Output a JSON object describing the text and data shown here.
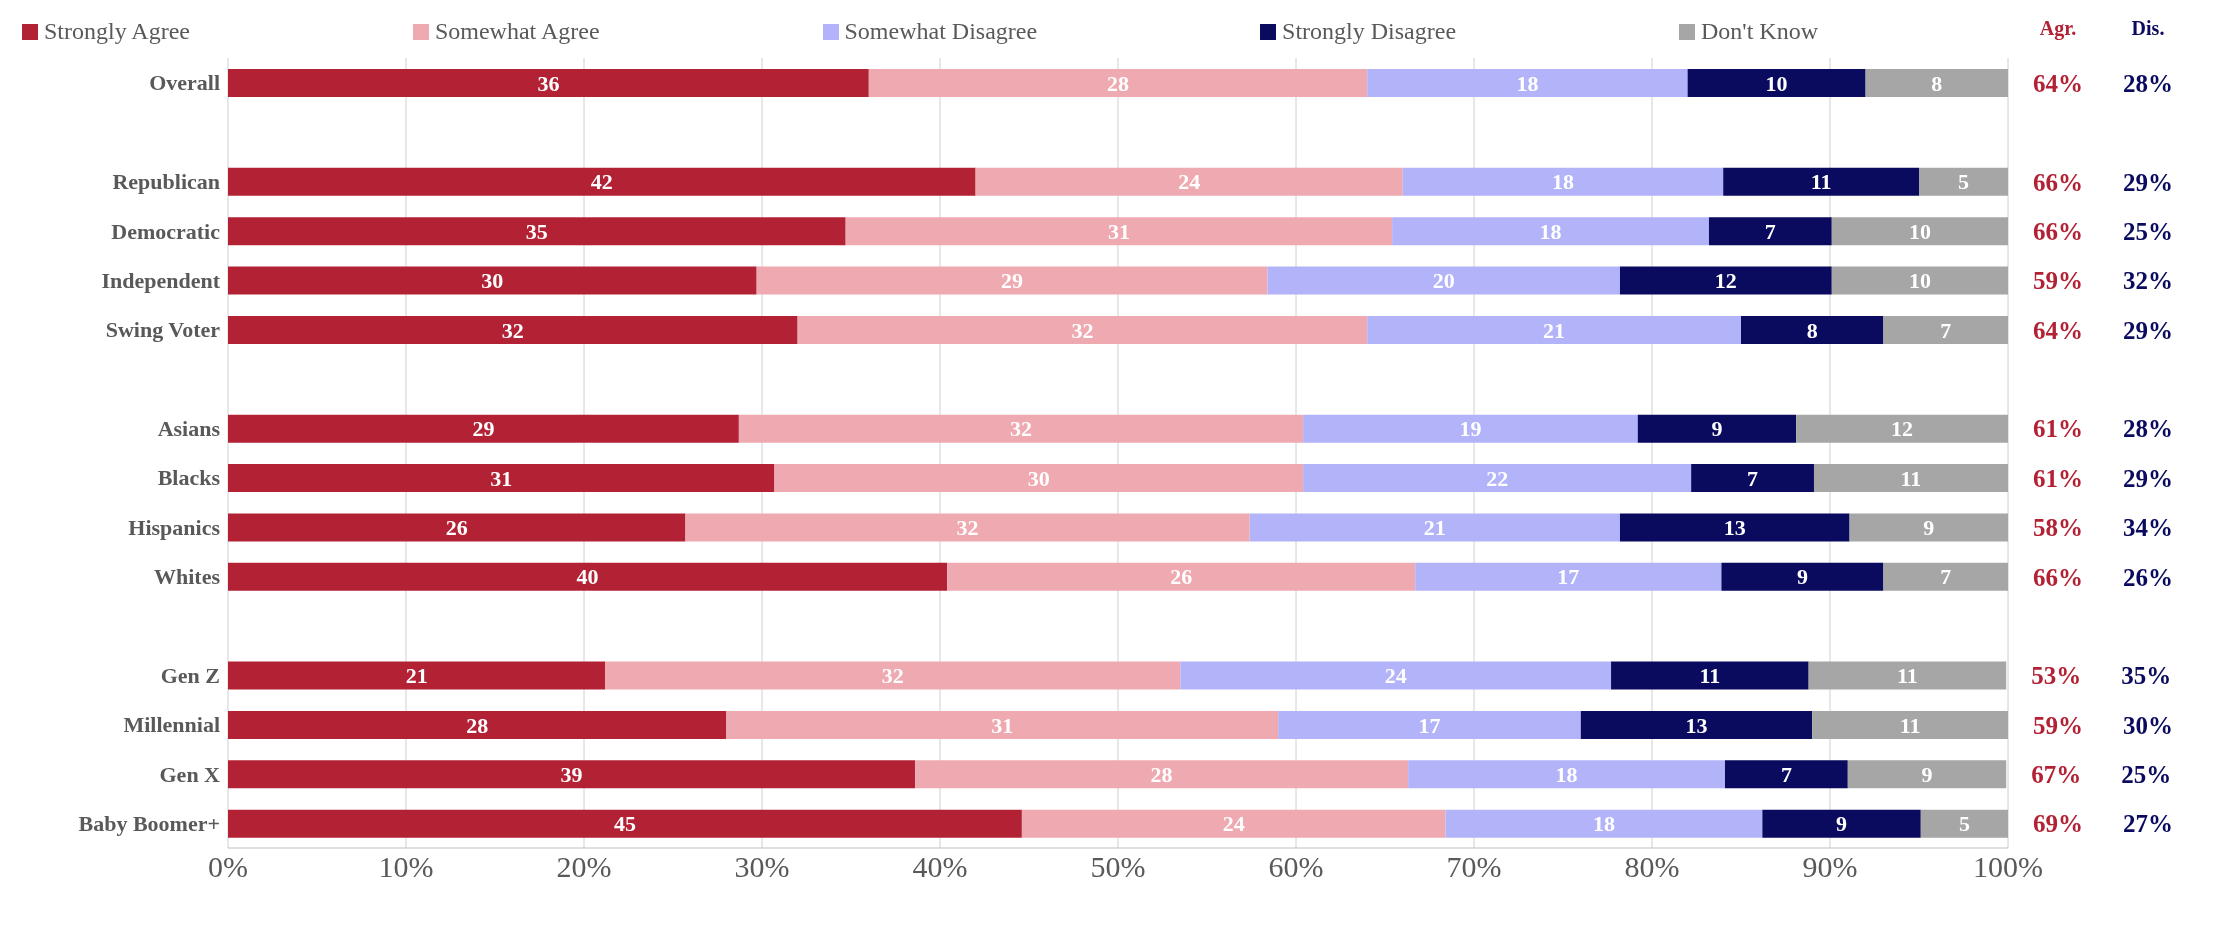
{
  "chart_data": {
    "type": "bar",
    "orientation": "horizontal",
    "stacked": true,
    "legend": "top",
    "grid": "x",
    "categories": [
      "Overall",
      null,
      "Republican",
      "Democratic",
      "Independent",
      "Swing Voter",
      null,
      "Asians",
      "Blacks",
      "Hispanics",
      "Whites",
      null,
      "Gen Z",
      "Millennial",
      "Gen X",
      "Baby Boomer+"
    ],
    "xlim": [
      0,
      100
    ],
    "xticks": [
      {
        "value": 0,
        "label": "0%"
      },
      {
        "value": 10,
        "label": "10%"
      },
      {
        "value": 20,
        "label": "20%"
      },
      {
        "value": 30,
        "label": "30%"
      },
      {
        "value": 40,
        "label": "40%"
      },
      {
        "value": 50,
        "label": "50%"
      },
      {
        "value": 60,
        "label": "60%"
      },
      {
        "value": 70,
        "label": "70%"
      },
      {
        "value": 80,
        "label": "80%"
      },
      {
        "value": 90,
        "label": "90%"
      },
      {
        "value": 100,
        "label": "100%"
      }
    ],
    "series": [
      {
        "name": "Strongly Agree",
        "color": "#b22234",
        "values": [
          36,
          null,
          42,
          34.7,
          29.7,
          32,
          null,
          28.7,
          30.7,
          25.7,
          40.4,
          null,
          21.2,
          28,
          38.6,
          44.6
        ],
        "value_labels": [
          "36",
          null,
          "42",
          "35",
          "30",
          "32",
          null,
          "29",
          "31",
          "26",
          "40",
          null,
          "21",
          "28",
          "39",
          "45"
        ]
      },
      {
        "name": "Somewhat Agree",
        "color": "#eeaab0",
        "values": [
          28,
          null,
          24,
          30.7,
          28.7,
          32,
          null,
          31.7,
          29.7,
          31.7,
          26.3,
          null,
          32.3,
          31,
          27.7,
          23.8
        ],
        "value_labels": [
          "28",
          null,
          "24",
          "31",
          "29",
          "32",
          null,
          "32",
          "30",
          "32",
          "26",
          null,
          "32",
          "31",
          "28",
          "24"
        ]
      },
      {
        "name": "Somewhat Disagree",
        "color": "#b3b3fa",
        "values": [
          18,
          null,
          18,
          17.8,
          19.8,
          21,
          null,
          18.8,
          21.8,
          20.8,
          17.2,
          null,
          24.2,
          17,
          17.8,
          17.8
        ],
        "value_labels": [
          "18",
          null,
          "18",
          "18",
          "20",
          "21",
          null,
          "19",
          "22",
          "21",
          "17",
          null,
          "24",
          "17",
          "18",
          "18"
        ]
      },
      {
        "name": "Strongly Disagree",
        "color": "#0a0a5e",
        "values": [
          10,
          null,
          11,
          6.9,
          11.9,
          8,
          null,
          8.9,
          6.9,
          12.9,
          9.1,
          null,
          11.1,
          13,
          6.9,
          8.9
        ],
        "value_labels": [
          "10",
          null,
          "11",
          "7",
          "12",
          "8",
          null,
          "9",
          "7",
          "13",
          "9",
          null,
          "11",
          "13",
          "7",
          "9"
        ]
      },
      {
        "name": "Don't Know",
        "color": "#a6a6a6",
        "values": [
          8,
          null,
          5,
          9.9,
          9.9,
          7,
          null,
          11.9,
          10.9,
          8.9,
          7,
          null,
          11.1,
          11,
          8.9,
          4.9
        ],
        "value_labels": [
          "8",
          null,
          "5",
          "10",
          "10",
          "7",
          null,
          "12",
          "11",
          "9",
          "7",
          null,
          "11",
          "11",
          "9",
          "5"
        ]
      }
    ],
    "annotations": [
      "Agr.",
      "Dis.",
      "64%",
      "28%",
      "66%",
      "29%",
      "66%",
      "25%",
      "59%",
      "32%",
      "64%",
      "29%",
      "61%",
      "28%",
      "61%",
      "29%",
      "58%",
      "34%",
      "66%",
      "26%",
      "53%",
      "35%",
      "59%",
      "30%",
      "67%",
      "25%",
      "69%",
      "27%"
    ]
  }
}
